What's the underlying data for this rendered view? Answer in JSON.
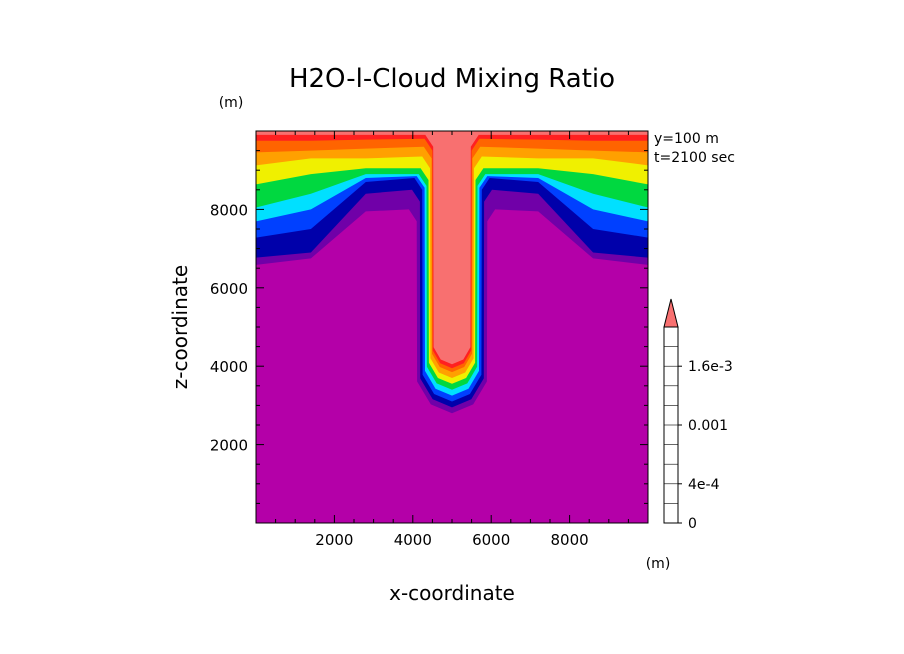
{
  "chart_data": {
    "type": "heatmap",
    "title": "H2O-l-Cloud Mixing Ratio",
    "xlabel": "x-coordinate",
    "ylabel": "z-coordinate",
    "x_unit": "(m)",
    "y_unit": "(m)",
    "annotations": [
      "y=100 m",
      "t=2100 sec"
    ],
    "xlim": [
      0,
      10000
    ],
    "ylim": [
      0,
      10000
    ],
    "x_ticks": [
      2000,
      4000,
      6000,
      8000
    ],
    "y_ticks": [
      2000,
      4000,
      6000,
      8000
    ],
    "x_tick_labels": [
      "2000",
      "4000",
      "6000",
      "8000"
    ],
    "y_tick_labels": [
      "2000",
      "4000",
      "6000",
      "8000"
    ],
    "colorbar": {
      "levels": [
        0,
        0.0002,
        0.0004,
        0.0006,
        0.0008,
        0.001,
        0.0012,
        0.0014,
        0.0016,
        0.0018,
        0.002
      ],
      "tick_values": [
        0,
        0.0004,
        0.001,
        0.0016
      ],
      "tick_labels": [
        "0",
        "4e-4",
        "0.001",
        "1.6e-3"
      ],
      "colors": [
        "#b400a8",
        "#7000a8",
        "#0000aa",
        "#0040ff",
        "#00e0ff",
        "#00d840",
        "#f0f000",
        "#ffa000",
        "#ff6400",
        "#ff2020",
        "#f87070"
      ],
      "extend": "max"
    },
    "cloud_structure": {
      "max_region": "central column, top from 9900 down to about 3900 at x=5000",
      "core_center_x": 5000,
      "zero_below_z": 2700,
      "top_layer_base_at_edges": 6500
    }
  }
}
